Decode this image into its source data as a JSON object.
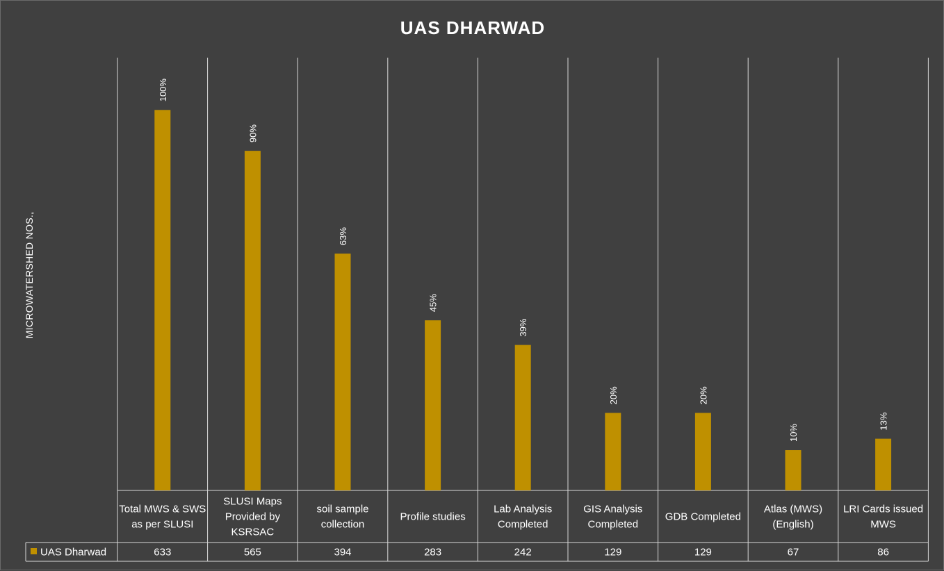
{
  "chart_data": {
    "type": "bar",
    "title": "UAS DHARWAD",
    "ylabel": "MICROWATERSHED NOS.,",
    "categories": [
      "Total MWS & SWS as per SLUSI",
      "SLUSI Maps Provided by KSRSAC",
      "soil sample collection",
      "Profile studies",
      "Lab Analysis Completed",
      "GIS Analysis Completed",
      "GDB Completed",
      "Atlas (MWS) (English)",
      "LRI Cards issued MWS"
    ],
    "series": [
      {
        "name": "UAS Dharwad",
        "color": "#bf9000",
        "values": [
          633,
          565,
          394,
          283,
          242,
          129,
          129,
          67,
          86
        ],
        "data_labels": [
          "100%",
          "90%",
          "63%",
          "45%",
          "39%",
          "20%",
          "20%",
          "10%",
          "13%"
        ]
      }
    ],
    "ylim": [
      0,
      720
    ],
    "grid": "vertical category separators",
    "legend": "data table"
  }
}
